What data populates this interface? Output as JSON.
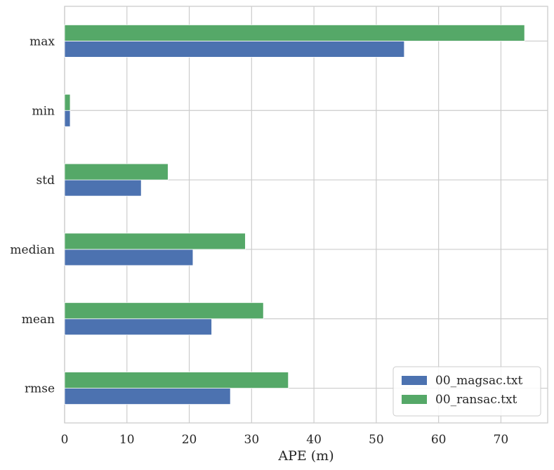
{
  "chart_data": {
    "type": "bar",
    "orientation": "horizontal",
    "categories": [
      "max",
      "min",
      "std",
      "median",
      "mean",
      "rmse"
    ],
    "series": [
      {
        "name": "00_magsac.txt",
        "color": "#4c72b0",
        "values": [
          54.5,
          0.9,
          12.3,
          20.6,
          23.6,
          26.6
        ]
      },
      {
        "name": "00_ransac.txt",
        "color": "#55a868",
        "values": [
          73.8,
          0.9,
          16.6,
          29.0,
          31.9,
          35.9
        ]
      }
    ],
    "xlabel": "APE (m)",
    "ylabel": "",
    "xlim": [
      0,
      77.5
    ],
    "xticks": [
      0,
      10,
      20,
      30,
      40,
      50,
      60,
      70
    ],
    "grid": true,
    "legend_position": "lower-right"
  }
}
